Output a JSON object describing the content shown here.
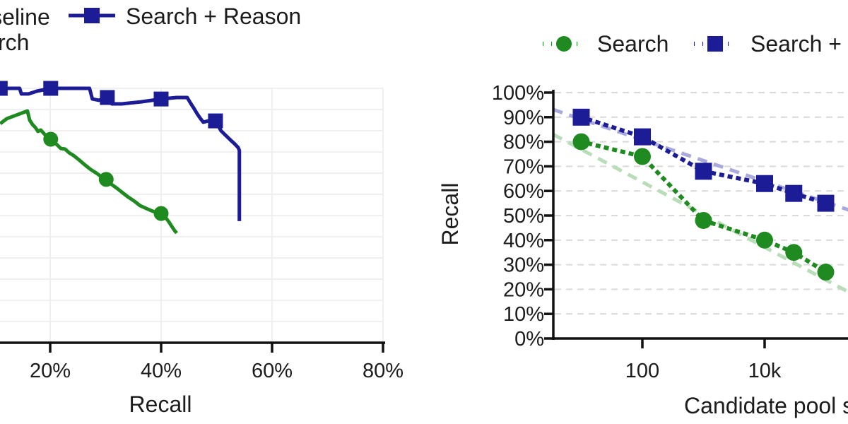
{
  "figure_note": "two-panel line figure",
  "chart_data": [
    {
      "type": "line",
      "panel": "left",
      "xlabel": "Recall",
      "x_tick_labels": [
        "20%",
        "40%",
        "60%",
        "80%"
      ],
      "y_tick_labels": [],
      "legend": [
        "Baseline",
        "Search",
        "Search + Reason"
      ],
      "point_format": "[recall_pct, y_frac_of_plot_height] (y axis labels cropped out of view)",
      "series": [
        {
          "name": "Search + Reason",
          "color": "#1c1c96",
          "marker": "square",
          "points": [
            [
              11.0,
              1.0
            ],
            [
              14.5,
              1.0
            ],
            [
              14.8,
              0.978
            ],
            [
              16.1,
              0.978
            ],
            [
              17.6,
              0.989
            ],
            [
              20.1,
              1.0
            ],
            [
              27.1,
              1.0
            ],
            [
              27.6,
              0.958
            ],
            [
              28.8,
              0.953
            ],
            [
              30.3,
              0.964
            ],
            [
              31.1,
              0.939
            ],
            [
              32.9,
              0.939
            ],
            [
              36.4,
              0.947
            ],
            [
              40.0,
              0.958
            ],
            [
              42.8,
              0.964
            ],
            [
              44.7,
              0.964
            ],
            [
              45.3,
              0.942
            ],
            [
              45.9,
              0.922
            ],
            [
              46.5,
              0.9
            ],
            [
              47.1,
              0.881
            ],
            [
              47.6,
              0.867
            ],
            [
              48.5,
              0.872
            ],
            [
              49.8,
              0.872
            ],
            [
              50.8,
              0.833
            ],
            [
              51.7,
              0.814
            ],
            [
              52.5,
              0.797
            ],
            [
              53.2,
              0.783
            ],
            [
              53.9,
              0.767
            ],
            [
              54.1,
              0.756
            ],
            [
              54.1,
              0.478
            ]
          ],
          "marker_points": [
            [
              11.0,
              1.0
            ],
            [
              20.1,
              1.0
            ],
            [
              30.3,
              0.964
            ],
            [
              40.0,
              0.958
            ],
            [
              49.8,
              0.872
            ]
          ]
        },
        {
          "name": "Search",
          "color": "#1f8a1f",
          "marker": "circle",
          "points": [
            [
              11.0,
              0.861
            ],
            [
              12.2,
              0.881
            ],
            [
              13.8,
              0.894
            ],
            [
              15.9,
              0.911
            ],
            [
              16.3,
              0.875
            ],
            [
              16.8,
              0.858
            ],
            [
              17.3,
              0.847
            ],
            [
              17.8,
              0.831
            ],
            [
              18.3,
              0.836
            ],
            [
              19.0,
              0.819
            ],
            [
              19.5,
              0.811
            ],
            [
              20.1,
              0.8
            ],
            [
              21.1,
              0.781
            ],
            [
              21.9,
              0.764
            ],
            [
              22.7,
              0.761
            ],
            [
              23.4,
              0.747
            ],
            [
              24.2,
              0.736
            ],
            [
              25.2,
              0.719
            ],
            [
              26.2,
              0.7
            ],
            [
              27.3,
              0.681
            ],
            [
              28.3,
              0.667
            ],
            [
              29.2,
              0.653
            ],
            [
              30.1,
              0.642
            ],
            [
              31.1,
              0.622
            ],
            [
              32.1,
              0.606
            ],
            [
              33.1,
              0.589
            ],
            [
              34.1,
              0.572
            ],
            [
              35.2,
              0.556
            ],
            [
              36.2,
              0.539
            ],
            [
              37.3,
              0.528
            ],
            [
              38.5,
              0.517
            ],
            [
              40.0,
              0.508
            ],
            [
              40.8,
              0.492
            ],
            [
              41.4,
              0.475
            ],
            [
              41.9,
              0.458
            ],
            [
              42.4,
              0.442
            ],
            [
              42.8,
              0.431
            ]
          ],
          "marker_points": [
            [
              20.1,
              0.8
            ],
            [
              30.1,
              0.642
            ],
            [
              40.0,
              0.508
            ]
          ]
        }
      ]
    },
    {
      "type": "line",
      "panel": "right",
      "xlabel": "Candidate pool size",
      "ylabel": "Recall",
      "x_scale": "log",
      "x_tick_labels": [
        "100",
        "10k"
      ],
      "y_tick_labels": [
        "0%",
        "10%",
        "20%",
        "30%",
        "40%",
        "50%",
        "60%",
        "70%",
        "80%",
        "90%",
        "100%"
      ],
      "legend": [
        "Search",
        "Search + Reason"
      ],
      "series": [
        {
          "name": "Search + Reason",
          "color": "#1c1c96",
          "marker": "square",
          "x": [
            10,
            100,
            1000,
            10000,
            30000,
            100000
          ],
          "y_pct": [
            90,
            82,
            68,
            63,
            59,
            55
          ],
          "trend_color": "#a9a9dd",
          "trend_log10x_pct": [
            [
              0.54,
              93.1
            ],
            [
              5.48,
              51.4
            ]
          ]
        },
        {
          "name": "Search",
          "color": "#1f8a1f",
          "marker": "circle",
          "x": [
            10,
            100,
            1000,
            10000,
            30000,
            100000
          ],
          "y_pct": [
            80,
            74,
            48,
            40,
            35,
            27
          ],
          "trend_color": "#b9dcb9",
          "trend_log10x_pct": [
            [
              0.54,
              83.0
            ],
            [
              5.48,
              17.5
            ]
          ]
        }
      ]
    }
  ],
  "colors": {
    "series_blue": "#1c1c96",
    "series_green": "#1f8a1f",
    "trend_blue": "#a9a9dd",
    "trend_green": "#b9dcb9",
    "grid_left": "#ececec",
    "grid_right_dashed": "#d9d9d9",
    "axis": "#111111",
    "text": "#1c1c1c"
  }
}
